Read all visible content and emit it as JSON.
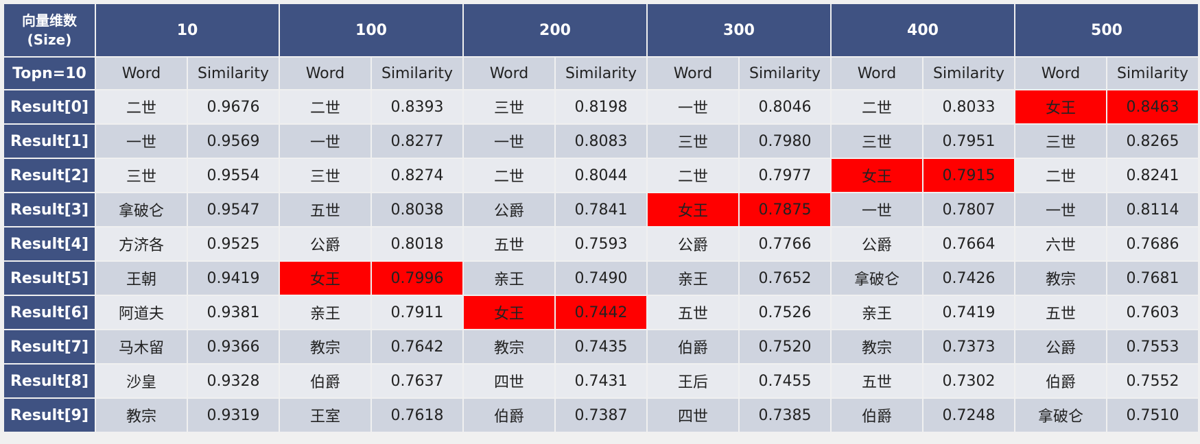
{
  "corner_label": [
    "向量维数",
    "(Size)"
  ],
  "topn_label": "Topn=10",
  "sizes": [
    "10",
    "100",
    "200",
    "300",
    "400",
    "500"
  ],
  "word_header": "Word",
  "similarity_header": "Similarity",
  "highlight_color": "#ff0000",
  "header_color": "#3f5282",
  "rows": [
    {
      "label": "Result[0]",
      "cells": [
        [
          "二世",
          "0.9676"
        ],
        [
          "二世",
          "0.8393"
        ],
        [
          "三世",
          "0.8198"
        ],
        [
          "一世",
          "0.8046"
        ],
        [
          "二世",
          "0.8033"
        ],
        [
          "女王",
          "0.8463"
        ]
      ],
      "highlight": 5
    },
    {
      "label": "Result[1]",
      "cells": [
        [
          "一世",
          "0.9569"
        ],
        [
          "一世",
          "0.8277"
        ],
        [
          "一世",
          "0.8083"
        ],
        [
          "三世",
          "0.7980"
        ],
        [
          "三世",
          "0.7951"
        ],
        [
          "三世",
          "0.8265"
        ]
      ],
      "highlight": -1
    },
    {
      "label": "Result[2]",
      "cells": [
        [
          "三世",
          "0.9554"
        ],
        [
          "三世",
          "0.8274"
        ],
        [
          "二世",
          "0.8044"
        ],
        [
          "二世",
          "0.7977"
        ],
        [
          "女王",
          "0.7915"
        ],
        [
          "二世",
          "0.8241"
        ]
      ],
      "highlight": 4
    },
    {
      "label": "Result[3]",
      "cells": [
        [
          "拿破仑",
          "0.9547"
        ],
        [
          "五世",
          "0.8038"
        ],
        [
          "公爵",
          "0.7841"
        ],
        [
          "女王",
          "0.7875"
        ],
        [
          "一世",
          "0.7807"
        ],
        [
          "一世",
          "0.8114"
        ]
      ],
      "highlight": 3
    },
    {
      "label": "Result[4]",
      "cells": [
        [
          "方济各",
          "0.9525"
        ],
        [
          "公爵",
          "0.8018"
        ],
        [
          "五世",
          "0.7593"
        ],
        [
          "公爵",
          "0.7766"
        ],
        [
          "公爵",
          "0.7664"
        ],
        [
          "六世",
          "0.7686"
        ]
      ],
      "highlight": -1
    },
    {
      "label": "Result[5]",
      "cells": [
        [
          "王朝",
          "0.9419"
        ],
        [
          "女王",
          "0.7996"
        ],
        [
          "亲王",
          "0.7490"
        ],
        [
          "亲王",
          "0.7652"
        ],
        [
          "拿破仑",
          "0.7426"
        ],
        [
          "教宗",
          "0.7681"
        ]
      ],
      "highlight": 1
    },
    {
      "label": "Result[6]",
      "cells": [
        [
          "阿道夫",
          "0.9381"
        ],
        [
          "亲王",
          "0.7911"
        ],
        [
          "女王",
          "0.7442"
        ],
        [
          "五世",
          "0.7526"
        ],
        [
          "亲王",
          "0.7419"
        ],
        [
          "五世",
          "0.7603"
        ]
      ],
      "highlight": 2
    },
    {
      "label": "Result[7]",
      "cells": [
        [
          "马木留",
          "0.9366"
        ],
        [
          "教宗",
          "0.7642"
        ],
        [
          "教宗",
          "0.7435"
        ],
        [
          "伯爵",
          "0.7520"
        ],
        [
          "教宗",
          "0.7373"
        ],
        [
          "公爵",
          "0.7553"
        ]
      ],
      "highlight": -1
    },
    {
      "label": "Result[8]",
      "cells": [
        [
          "沙皇",
          "0.9328"
        ],
        [
          "伯爵",
          "0.7637"
        ],
        [
          "四世",
          "0.7431"
        ],
        [
          "王后",
          "0.7455"
        ],
        [
          "五世",
          "0.7302"
        ],
        [
          "伯爵",
          "0.7552"
        ]
      ],
      "highlight": -1
    },
    {
      "label": "Result[9]",
      "cells": [
        [
          "教宗",
          "0.9319"
        ],
        [
          "王室",
          "0.7618"
        ],
        [
          "伯爵",
          "0.7387"
        ],
        [
          "四世",
          "0.7385"
        ],
        [
          "伯爵",
          "0.7248"
        ],
        [
          "拿破仑",
          "0.7510"
        ]
      ],
      "highlight": -1
    }
  ]
}
